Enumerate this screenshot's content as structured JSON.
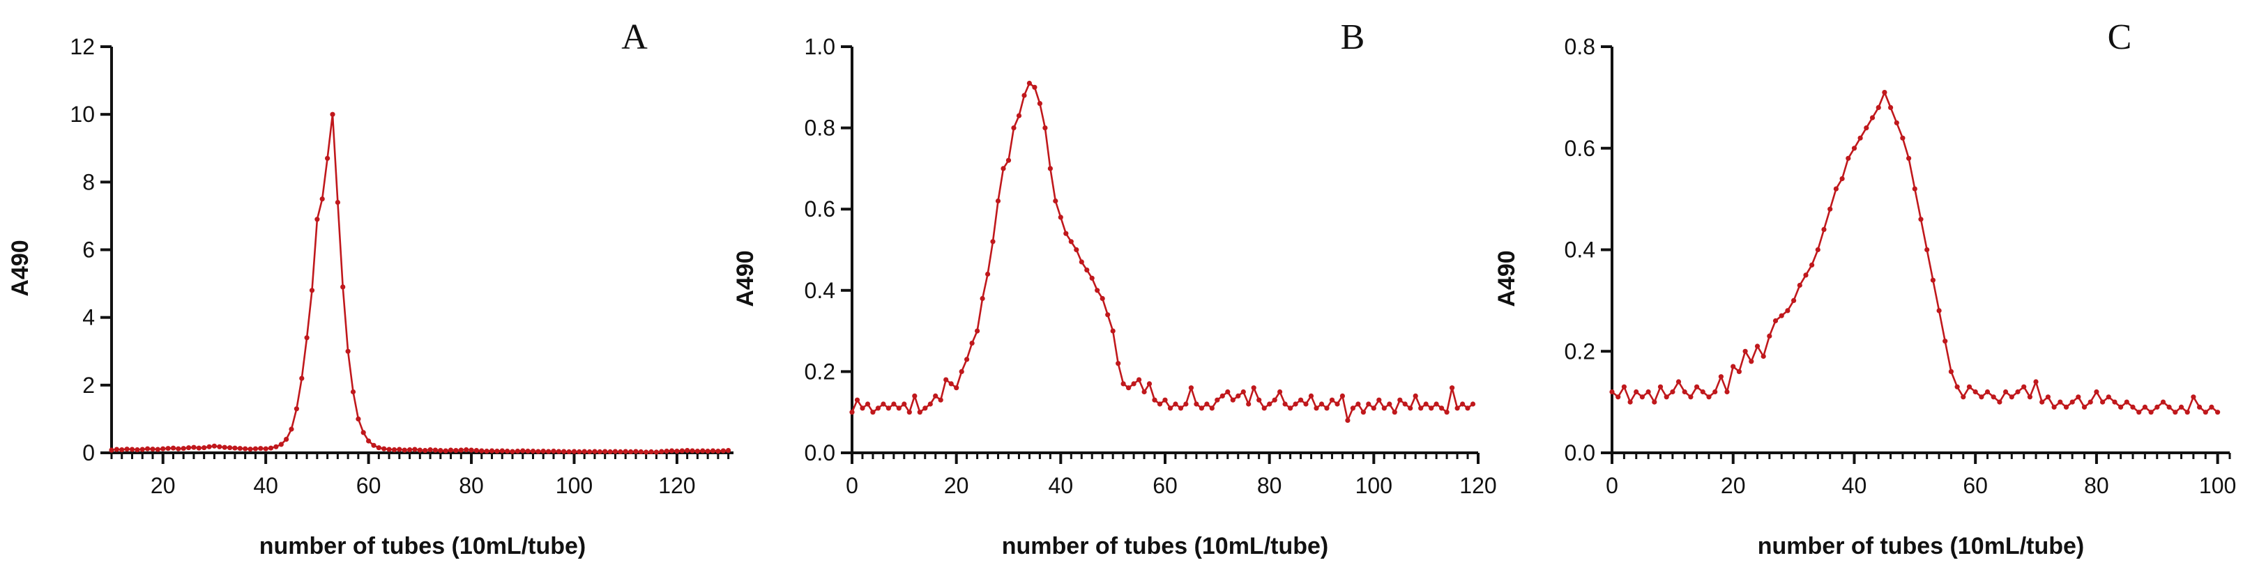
{
  "colors": {
    "series": "#c0181c",
    "axis": "#111111"
  },
  "chart_data": [
    {
      "type": "line",
      "panel_label": "A",
      "xlabel": "number of tubes (10mL/tube)",
      "ylabel": "A490",
      "xlim": [
        10,
        131
      ],
      "ylim": [
        0,
        12
      ],
      "xticks": [
        20,
        40,
        60,
        80,
        100,
        120
      ],
      "yticks": [
        0,
        2,
        4,
        6,
        8,
        10,
        12
      ],
      "xtick_labels": [
        "20",
        "40",
        "60",
        "80",
        "100",
        "120"
      ],
      "ytick_labels": [
        "0",
        "2",
        "4",
        "6",
        "8",
        "10",
        "12"
      ],
      "series": [
        {
          "name": "A490",
          "x": [
            10,
            11,
            12,
            13,
            14,
            15,
            16,
            17,
            18,
            19,
            20,
            21,
            22,
            23,
            24,
            25,
            26,
            27,
            28,
            29,
            30,
            31,
            32,
            33,
            34,
            35,
            36,
            37,
            38,
            39,
            40,
            41,
            42,
            43,
            44,
            45,
            46,
            47,
            48,
            49,
            50,
            51,
            52,
            53,
            54,
            55,
            56,
            57,
            58,
            59,
            60,
            61,
            62,
            63,
            64,
            65,
            66,
            67,
            68,
            69,
            70,
            71,
            72,
            73,
            74,
            75,
            76,
            77,
            78,
            79,
            80,
            81,
            82,
            83,
            84,
            85,
            86,
            87,
            88,
            89,
            90,
            91,
            92,
            93,
            94,
            95,
            96,
            97,
            98,
            99,
            100,
            101,
            102,
            103,
            104,
            105,
            106,
            107,
            108,
            109,
            110,
            111,
            112,
            113,
            114,
            115,
            116,
            117,
            118,
            119,
            120,
            121,
            122,
            123,
            124,
            125,
            126,
            127,
            128,
            129,
            130
          ],
          "y": [
            0.08,
            0.1,
            0.09,
            0.11,
            0.1,
            0.09,
            0.1,
            0.12,
            0.11,
            0.1,
            0.12,
            0.13,
            0.14,
            0.12,
            0.13,
            0.15,
            0.16,
            0.14,
            0.15,
            0.18,
            0.2,
            0.18,
            0.16,
            0.15,
            0.14,
            0.13,
            0.12,
            0.11,
            0.12,
            0.13,
            0.12,
            0.14,
            0.18,
            0.25,
            0.4,
            0.7,
            1.3,
            2.2,
            3.4,
            4.8,
            6.9,
            7.5,
            8.7,
            10.0,
            7.4,
            4.9,
            3.0,
            1.8,
            1.0,
            0.6,
            0.35,
            0.22,
            0.15,
            0.12,
            0.1,
            0.09,
            0.1,
            0.08,
            0.09,
            0.1,
            0.08,
            0.07,
            0.09,
            0.08,
            0.07,
            0.06,
            0.08,
            0.07,
            0.08,
            0.09,
            0.08,
            0.07,
            0.06,
            0.05,
            0.06,
            0.05,
            0.06,
            0.05,
            0.04,
            0.05,
            0.06,
            0.05,
            0.05,
            0.04,
            0.05,
            0.04,
            0.05,
            0.04,
            0.04,
            0.03,
            0.04,
            0.03,
            0.04,
            0.03,
            0.04,
            0.03,
            0.04,
            0.03,
            0.04,
            0.03,
            0.04,
            0.03,
            0.04,
            0.03,
            0.02,
            0.03,
            0.02,
            0.04,
            0.05,
            0.06,
            0.05,
            0.06,
            0.07,
            0.06,
            0.05,
            0.06,
            0.05,
            0.06,
            0.05,
            0.06,
            0.07
          ]
        }
      ]
    },
    {
      "type": "line",
      "panel_label": "B",
      "xlabel": "number of tubes (10mL/tube)",
      "ylabel": "A490",
      "xlim": [
        0,
        120
      ],
      "ylim": [
        0,
        1.0
      ],
      "xticks": [
        0,
        20,
        40,
        60,
        80,
        100,
        120
      ],
      "yticks": [
        0.0,
        0.2,
        0.4,
        0.6,
        0.8,
        1.0
      ],
      "xtick_labels": [
        "0",
        "20",
        "40",
        "60",
        "80",
        "100",
        "120"
      ],
      "ytick_labels": [
        "0.0",
        "0.2",
        "0.4",
        "0.6",
        "0.8",
        "1.0"
      ],
      "series": [
        {
          "name": "A490",
          "x": [
            0,
            1,
            2,
            3,
            4,
            5,
            6,
            7,
            8,
            9,
            10,
            11,
            12,
            13,
            14,
            15,
            16,
            17,
            18,
            19,
            20,
            21,
            22,
            23,
            24,
            25,
            26,
            27,
            28,
            29,
            30,
            31,
            32,
            33,
            34,
            35,
            36,
            37,
            38,
            39,
            40,
            41,
            42,
            43,
            44,
            45,
            46,
            47,
            48,
            49,
            50,
            51,
            52,
            53,
            54,
            55,
            56,
            57,
            58,
            59,
            60,
            61,
            62,
            63,
            64,
            65,
            66,
            67,
            68,
            69,
            70,
            71,
            72,
            73,
            74,
            75,
            76,
            77,
            78,
            79,
            80,
            81,
            82,
            83,
            84,
            85,
            86,
            87,
            88,
            89,
            90,
            91,
            92,
            93,
            94,
            95,
            96,
            97,
            98,
            99,
            100,
            101,
            102,
            103,
            104,
            105,
            106,
            107,
            108,
            109,
            110,
            111,
            112,
            113,
            114,
            115,
            116,
            117,
            118,
            119
          ],
          "y": [
            0.1,
            0.13,
            0.11,
            0.12,
            0.1,
            0.11,
            0.12,
            0.11,
            0.12,
            0.11,
            0.12,
            0.1,
            0.14,
            0.1,
            0.11,
            0.12,
            0.14,
            0.13,
            0.18,
            0.17,
            0.16,
            0.2,
            0.23,
            0.27,
            0.3,
            0.38,
            0.44,
            0.52,
            0.62,
            0.7,
            0.72,
            0.8,
            0.83,
            0.88,
            0.91,
            0.9,
            0.86,
            0.8,
            0.7,
            0.62,
            0.58,
            0.54,
            0.52,
            0.5,
            0.47,
            0.45,
            0.43,
            0.4,
            0.38,
            0.34,
            0.3,
            0.22,
            0.17,
            0.16,
            0.17,
            0.18,
            0.15,
            0.17,
            0.13,
            0.12,
            0.13,
            0.11,
            0.12,
            0.11,
            0.12,
            0.16,
            0.12,
            0.11,
            0.12,
            0.11,
            0.13,
            0.14,
            0.15,
            0.13,
            0.14,
            0.15,
            0.12,
            0.16,
            0.13,
            0.11,
            0.12,
            0.13,
            0.15,
            0.12,
            0.11,
            0.12,
            0.13,
            0.12,
            0.14,
            0.11,
            0.12,
            0.11,
            0.13,
            0.12,
            0.14,
            0.08,
            0.11,
            0.12,
            0.1,
            0.12,
            0.11,
            0.13,
            0.11,
            0.12,
            0.1,
            0.13,
            0.12,
            0.11,
            0.14,
            0.11,
            0.12,
            0.11,
            0.12,
            0.11,
            0.1,
            0.16,
            0.11,
            0.12,
            0.11,
            0.12
          ]
        }
      ]
    },
    {
      "type": "line",
      "panel_label": "C",
      "xlabel": "number of tubes (10mL/tube)",
      "ylabel": "A490",
      "xlim": [
        0,
        102
      ],
      "ylim": [
        0,
        0.8
      ],
      "xticks": [
        0,
        20,
        40,
        60,
        80,
        100
      ],
      "yticks": [
        0.0,
        0.2,
        0.4,
        0.6,
        0.8
      ],
      "xtick_labels": [
        "0",
        "20",
        "40",
        "60",
        "80",
        "100"
      ],
      "ytick_labels": [
        "0.0",
        "0.2",
        "0.4",
        "0.6",
        "0.8"
      ],
      "series": [
        {
          "name": "A490",
          "x": [
            0,
            1,
            2,
            3,
            4,
            5,
            6,
            7,
            8,
            9,
            10,
            11,
            12,
            13,
            14,
            15,
            16,
            17,
            18,
            19,
            20,
            21,
            22,
            23,
            24,
            25,
            26,
            27,
            28,
            29,
            30,
            31,
            32,
            33,
            34,
            35,
            36,
            37,
            38,
            39,
            40,
            41,
            42,
            43,
            44,
            45,
            46,
            47,
            48,
            49,
            50,
            51,
            52,
            53,
            54,
            55,
            56,
            57,
            58,
            59,
            60,
            61,
            62,
            63,
            64,
            65,
            66,
            67,
            68,
            69,
            70,
            71,
            72,
            73,
            74,
            75,
            76,
            77,
            78,
            79,
            80,
            81,
            82,
            83,
            84,
            85,
            86,
            87,
            88,
            89,
            90,
            91,
            92,
            93,
            94,
            95,
            96,
            97,
            98,
            99,
            100
          ],
          "y": [
            0.12,
            0.11,
            0.13,
            0.1,
            0.12,
            0.11,
            0.12,
            0.1,
            0.13,
            0.11,
            0.12,
            0.14,
            0.12,
            0.11,
            0.13,
            0.12,
            0.11,
            0.12,
            0.15,
            0.12,
            0.17,
            0.16,
            0.2,
            0.18,
            0.21,
            0.19,
            0.23,
            0.26,
            0.27,
            0.28,
            0.3,
            0.33,
            0.35,
            0.37,
            0.4,
            0.44,
            0.48,
            0.52,
            0.54,
            0.58,
            0.6,
            0.62,
            0.64,
            0.66,
            0.68,
            0.71,
            0.68,
            0.65,
            0.62,
            0.58,
            0.52,
            0.46,
            0.4,
            0.34,
            0.28,
            0.22,
            0.16,
            0.13,
            0.11,
            0.13,
            0.12,
            0.11,
            0.12,
            0.11,
            0.1,
            0.12,
            0.11,
            0.12,
            0.13,
            0.11,
            0.14,
            0.1,
            0.11,
            0.09,
            0.1,
            0.09,
            0.1,
            0.11,
            0.09,
            0.1,
            0.12,
            0.1,
            0.11,
            0.1,
            0.09,
            0.1,
            0.09,
            0.08,
            0.09,
            0.08,
            0.09,
            0.1,
            0.09,
            0.08,
            0.09,
            0.08,
            0.11,
            0.09,
            0.08,
            0.09,
            0.08
          ]
        }
      ]
    }
  ]
}
